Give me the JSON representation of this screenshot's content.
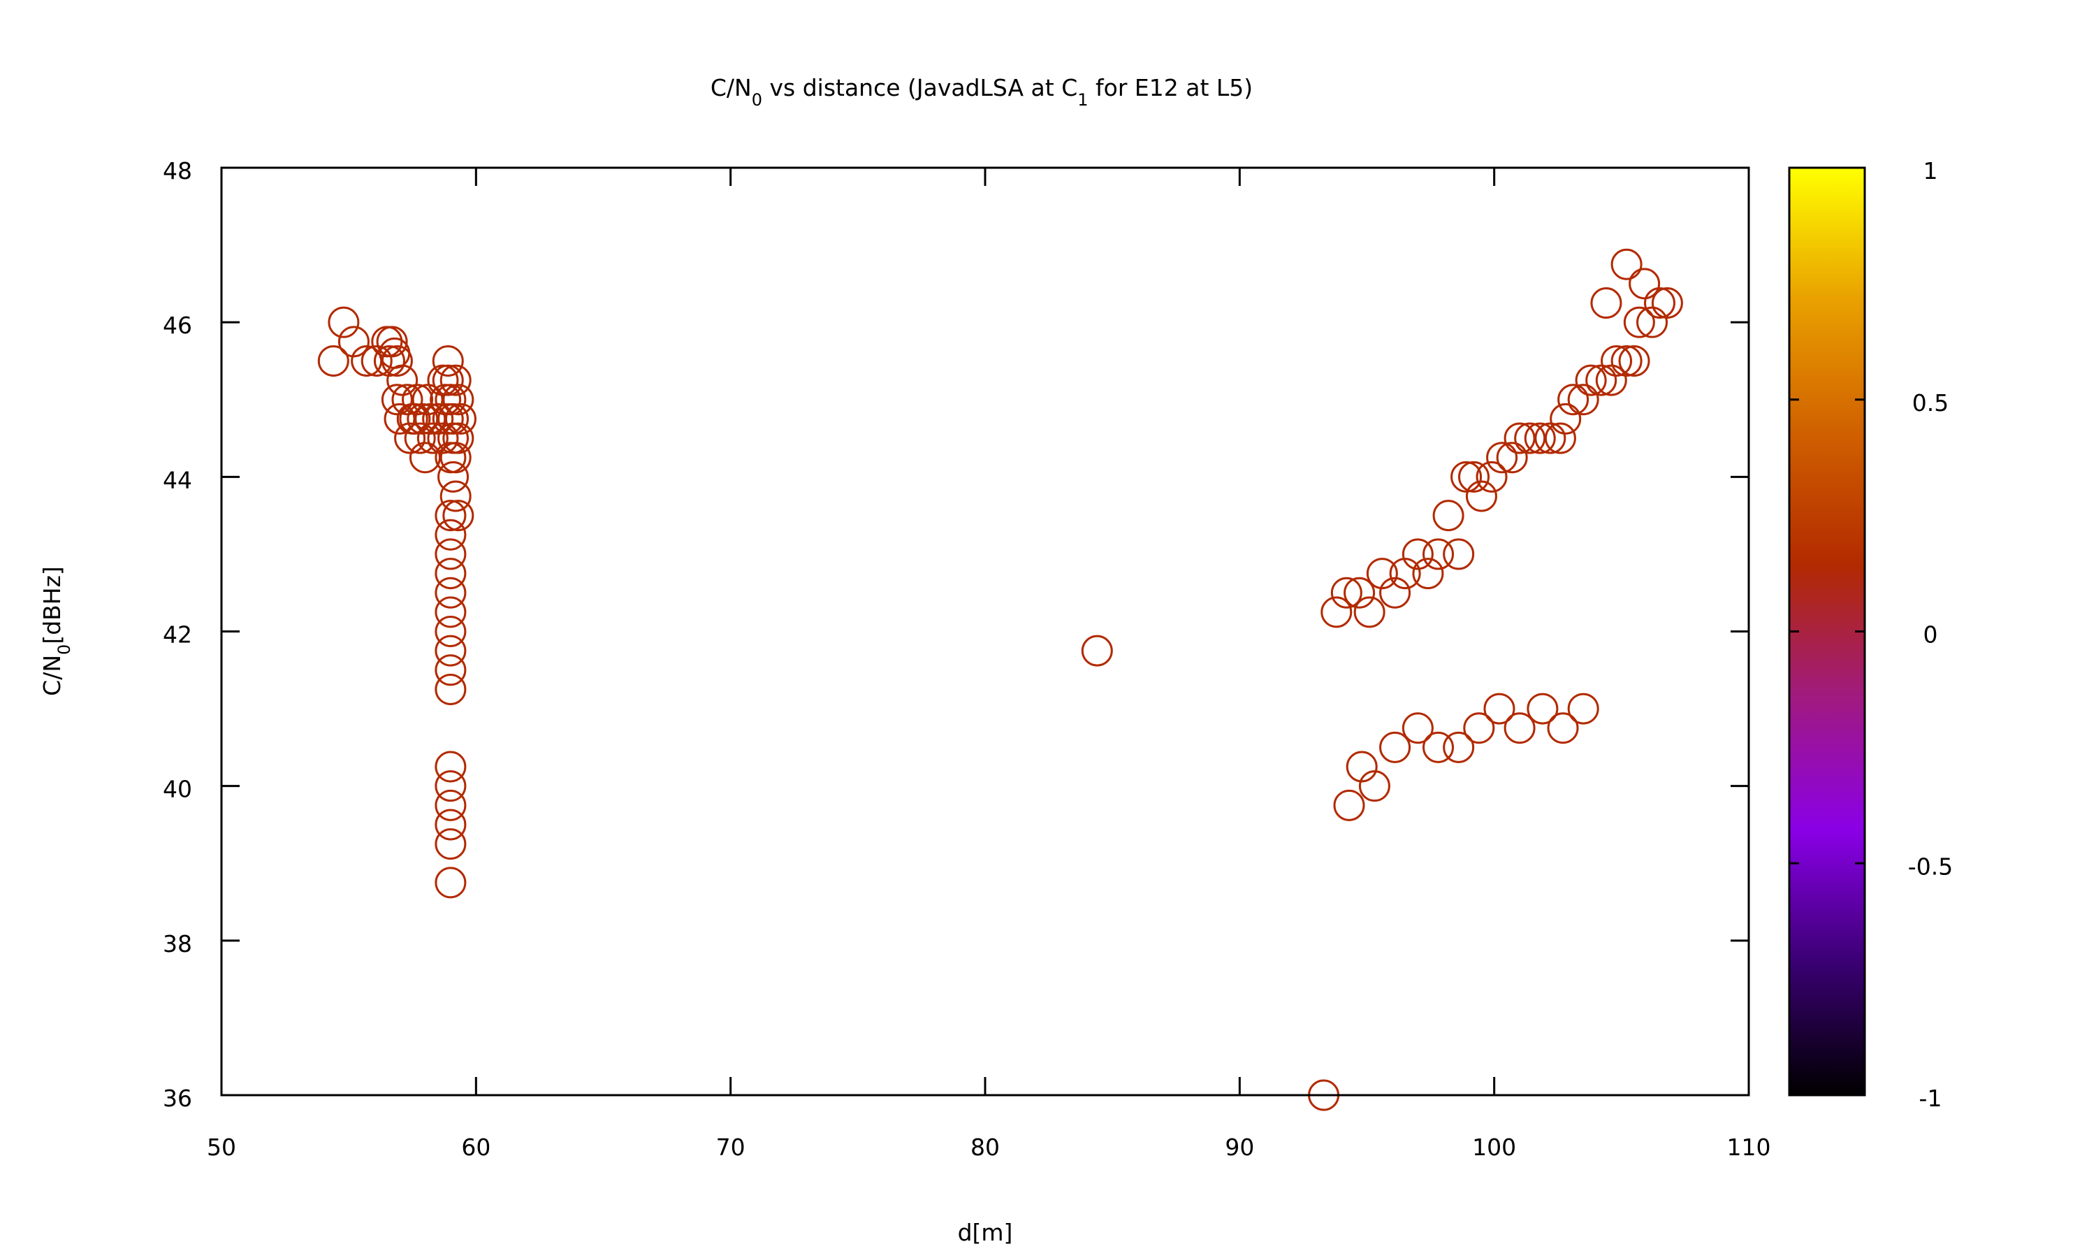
{
  "chart_data": {
    "type": "scatter",
    "title": "C/N0 vs distance (JavadLSA at C1 for E12 at L5)",
    "title_parts": [
      {
        "text": "C/N",
        "sub": false
      },
      {
        "text": "0",
        "sub": true
      },
      {
        "text": " vs distance (JavadLSA at C",
        "sub": false
      },
      {
        "text": "1",
        "sub": true
      },
      {
        "text": " for E12 at L5)",
        "sub": false
      }
    ],
    "xlabel": "d[m]",
    "ylabel": "C/N0[dBHz]",
    "ylabel_parts": [
      {
        "text": "C/N",
        "sub": false
      },
      {
        "text": "0",
        "sub": true
      },
      {
        "text": "[dBHz]",
        "sub": false
      }
    ],
    "xlim": [
      50,
      110
    ],
    "ylim": [
      36,
      48
    ],
    "xticks": [
      "50",
      "60",
      "70",
      "80",
      "90",
      "100",
      "110"
    ],
    "yticks": [
      "36",
      "38",
      "40",
      "42",
      "44",
      "46",
      "48"
    ],
    "grid": false,
    "marker": "open-circle",
    "marker_color": "#b22a00",
    "colorbar": {
      "range": [
        -1,
        1
      ],
      "ticks": [
        "-1",
        "-0.5",
        "0",
        "0.5",
        "1"
      ],
      "stops": [
        "#000000",
        "#3a0073",
        "#8a00e6",
        "#a01a80",
        "#b22a00",
        "#d06000",
        "#e9a000",
        "#ffff00"
      ]
    },
    "points": [
      [
        54.4,
        45.5
      ],
      [
        54.8,
        46.0
      ],
      [
        55.2,
        45.75
      ],
      [
        55.7,
        45.5
      ],
      [
        56.1,
        45.5
      ],
      [
        56.5,
        45.75
      ],
      [
        56.7,
        45.75
      ],
      [
        56.8,
        45.6
      ],
      [
        56.6,
        45.5
      ],
      [
        56.9,
        45.5
      ],
      [
        57.1,
        45.25
      ],
      [
        56.9,
        45.0
      ],
      [
        57.0,
        44.75
      ],
      [
        57.3,
        45.0
      ],
      [
        57.5,
        44.75
      ],
      [
        57.4,
        44.5
      ],
      [
        57.7,
        45.0
      ],
      [
        57.9,
        44.75
      ],
      [
        57.8,
        44.5
      ],
      [
        58.1,
        45.0
      ],
      [
        58.2,
        44.75
      ],
      [
        58.0,
        44.25
      ],
      [
        58.3,
        44.5
      ],
      [
        58.5,
        44.75
      ],
      [
        58.7,
        44.5
      ],
      [
        58.8,
        45.0
      ],
      [
        57.6,
        44.75
      ],
      [
        58.9,
        44.75
      ],
      [
        58.9,
        45.25
      ],
      [
        59.0,
        45.0
      ],
      [
        59.1,
        44.75
      ],
      [
        58.7,
        45.25
      ],
      [
        58.9,
        45.5
      ],
      [
        59.2,
        45.25
      ],
      [
        59.3,
        45.0
      ],
      [
        59.4,
        44.75
      ],
      [
        59.1,
        44.5
      ],
      [
        59.3,
        44.5
      ],
      [
        59.2,
        44.25
      ],
      [
        59.0,
        44.25
      ],
      [
        59.1,
        44.0
      ],
      [
        59.2,
        43.75
      ],
      [
        59.3,
        43.5
      ],
      [
        59.0,
        43.5
      ],
      [
        59.0,
        43.25
      ],
      [
        59.0,
        43.0
      ],
      [
        59.0,
        42.75
      ],
      [
        59.0,
        42.5
      ],
      [
        59.0,
        42.25
      ],
      [
        59.0,
        42.0
      ],
      [
        59.0,
        41.75
      ],
      [
        59.0,
        41.5
      ],
      [
        59.0,
        41.25
      ],
      [
        59.0,
        40.25
      ],
      [
        59.0,
        40.0
      ],
      [
        59.0,
        39.75
      ],
      [
        59.0,
        39.5
      ],
      [
        59.0,
        39.25
      ],
      [
        59.0,
        38.75
      ],
      [
        84.4,
        41.75
      ],
      [
        93.3,
        36.0
      ],
      [
        93.8,
        42.25
      ],
      [
        94.2,
        42.5
      ],
      [
        94.7,
        42.5
      ],
      [
        95.1,
        42.25
      ],
      [
        95.6,
        42.75
      ],
      [
        96.1,
        42.5
      ],
      [
        96.5,
        42.75
      ],
      [
        97.0,
        43.0
      ],
      [
        97.4,
        42.75
      ],
      [
        97.8,
        43.0
      ],
      [
        98.2,
        43.5
      ],
      [
        98.6,
        43.0
      ],
      [
        98.9,
        44.0
      ],
      [
        99.2,
        44.0
      ],
      [
        99.5,
        43.75
      ],
      [
        99.9,
        44.0
      ],
      [
        100.3,
        44.25
      ],
      [
        100.7,
        44.25
      ],
      [
        101.0,
        44.5
      ],
      [
        101.4,
        44.5
      ],
      [
        101.8,
        44.5
      ],
      [
        102.2,
        44.5
      ],
      [
        102.6,
        44.5
      ],
      [
        102.8,
        44.75
      ],
      [
        103.1,
        45.0
      ],
      [
        103.5,
        45.0
      ],
      [
        103.8,
        45.25
      ],
      [
        104.2,
        45.25
      ],
      [
        104.6,
        45.25
      ],
      [
        104.8,
        45.5
      ],
      [
        105.2,
        45.5
      ],
      [
        105.5,
        45.5
      ],
      [
        104.4,
        46.25
      ],
      [
        105.2,
        46.75
      ],
      [
        105.7,
        46.0
      ],
      [
        105.9,
        46.5
      ],
      [
        106.2,
        46.0
      ],
      [
        106.5,
        46.25
      ],
      [
        106.8,
        46.25
      ],
      [
        94.3,
        39.75
      ],
      [
        94.8,
        40.25
      ],
      [
        95.3,
        40.0
      ],
      [
        96.1,
        40.5
      ],
      [
        97.0,
        40.75
      ],
      [
        97.8,
        40.5
      ],
      [
        98.6,
        40.5
      ],
      [
        99.4,
        40.75
      ],
      [
        100.2,
        41.0
      ],
      [
        101.0,
        40.75
      ],
      [
        101.9,
        41.0
      ],
      [
        102.7,
        40.75
      ],
      [
        103.5,
        41.0
      ]
    ]
  }
}
